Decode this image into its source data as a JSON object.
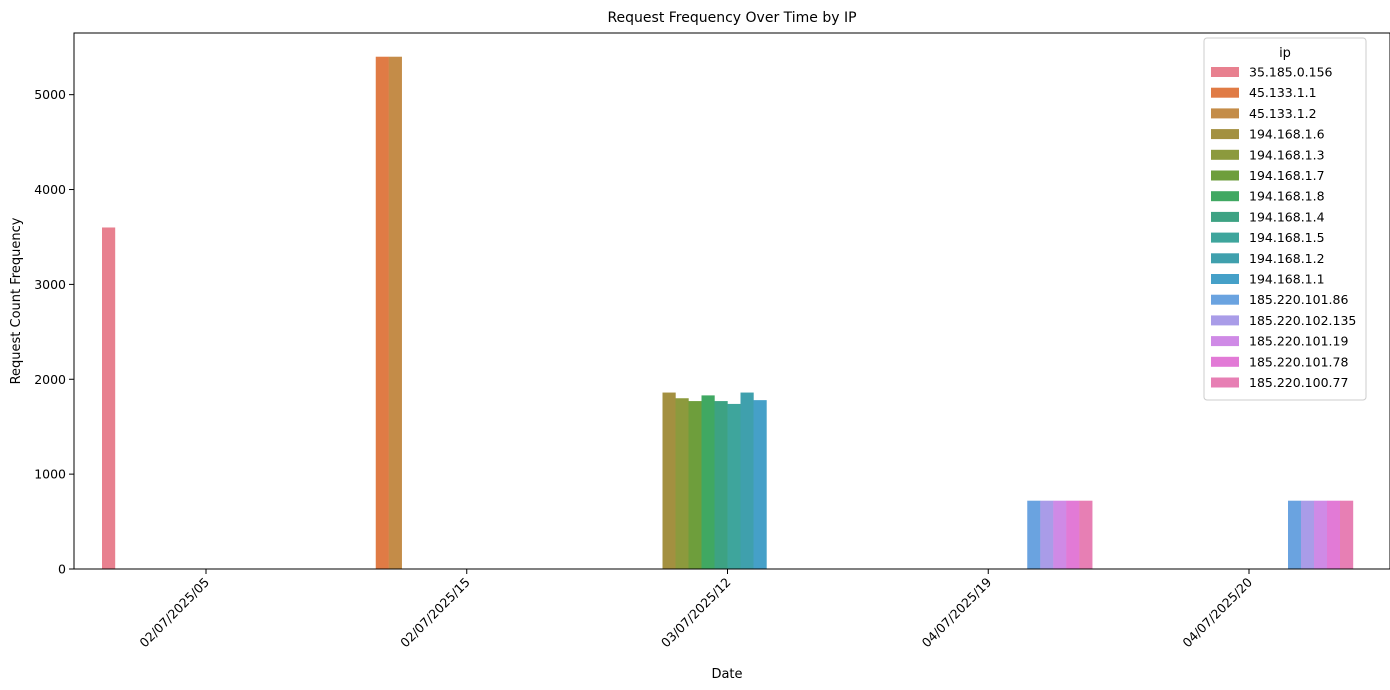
{
  "chart_data": {
    "type": "bar",
    "title": "Request Frequency Over Time by IP",
    "xlabel": "Date",
    "ylabel": "Request Count Frequency",
    "ylim": [
      0,
      5650
    ],
    "yticks": [
      0,
      1000,
      2000,
      3000,
      4000,
      5000
    ],
    "categories": [
      "02/07/2025/05",
      "02/07/2025/15",
      "03/07/2025/12",
      "04/07/2025/19",
      "04/07/2025/20"
    ],
    "legend_title": "ip",
    "legend_position": "top-right",
    "grid": false,
    "series": [
      {
        "name": "35.185.0.156",
        "color": "#e8808f",
        "values": [
          3600,
          null,
          null,
          null,
          null
        ]
      },
      {
        "name": "45.133.1.1",
        "color": "#e07b45",
        "values": [
          null,
          5400,
          null,
          null,
          null
        ]
      },
      {
        "name": "45.133.1.2",
        "color": "#c48c48",
        "values": [
          null,
          5400,
          null,
          null,
          null
        ]
      },
      {
        "name": "194.168.1.6",
        "color": "#a39040",
        "values": [
          null,
          null,
          1860,
          null,
          null
        ]
      },
      {
        "name": "194.168.1.3",
        "color": "#8c9a3d",
        "values": [
          null,
          null,
          1800,
          null,
          null
        ]
      },
      {
        "name": "194.168.1.7",
        "color": "#6e9e3c",
        "values": [
          null,
          null,
          1770,
          null,
          null
        ]
      },
      {
        "name": "194.168.1.8",
        "color": "#40a862",
        "values": [
          null,
          null,
          1830,
          null,
          null
        ]
      },
      {
        "name": "194.168.1.4",
        "color": "#3da283",
        "values": [
          null,
          null,
          1770,
          null,
          null
        ]
      },
      {
        "name": "194.168.1.5",
        "color": "#3ea59c",
        "values": [
          null,
          null,
          1740,
          null,
          null
        ]
      },
      {
        "name": "194.168.1.2",
        "color": "#3fa0ad",
        "values": [
          null,
          null,
          1860,
          null,
          null
        ]
      },
      {
        "name": "194.168.1.1",
        "color": "#45a0c8",
        "values": [
          null,
          null,
          1780,
          null,
          null
        ]
      },
      {
        "name": "185.220.101.86",
        "color": "#6aa3e0",
        "values": [
          null,
          null,
          null,
          720,
          720
        ]
      },
      {
        "name": "185.220.102.135",
        "color": "#a99ce8",
        "values": [
          null,
          null,
          null,
          720,
          720
        ]
      },
      {
        "name": "185.220.101.19",
        "color": "#cf8ae6",
        "values": [
          null,
          null,
          null,
          720,
          720
        ]
      },
      {
        "name": "185.220.101.78",
        "color": "#e27ad6",
        "values": [
          null,
          null,
          null,
          720,
          720
        ]
      },
      {
        "name": "185.220.100.77",
        "color": "#e77fb4",
        "values": [
          null,
          null,
          null,
          720,
          720
        ]
      }
    ]
  }
}
